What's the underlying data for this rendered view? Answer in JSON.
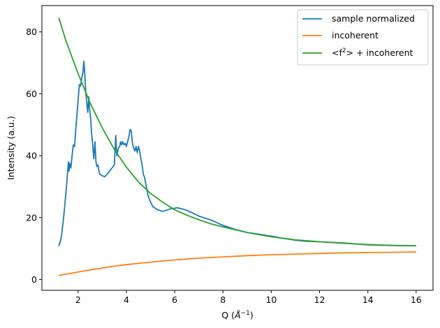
{
  "chart_data": {
    "type": "line",
    "xlabel": "Q (Å⁻¹)",
    "ylabel": "Intensity (a.u.)",
    "xlim": [
      0.5,
      16.7
    ],
    "ylim": [
      -3.5,
      88.5
    ],
    "xticks": [
      2,
      4,
      6,
      8,
      10,
      12,
      14,
      16
    ],
    "yticks": [
      0,
      20,
      40,
      60,
      80
    ],
    "grid": false,
    "legend_position": "top-right",
    "series": [
      {
        "name": "sample normalized",
        "color": "#1f77b4",
        "x": [
          1.2,
          1.3,
          1.4,
          1.5,
          1.6,
          1.62,
          1.66,
          1.7,
          1.75,
          1.8,
          1.85,
          1.9,
          1.95,
          2.0,
          2.05,
          2.1,
          2.15,
          2.2,
          2.24,
          2.28,
          2.32,
          2.36,
          2.4,
          2.44,
          2.48,
          2.52,
          2.56,
          2.6,
          2.65,
          2.7,
          2.74,
          2.78,
          2.82,
          2.86,
          2.9,
          3.0,
          3.1,
          3.2,
          3.3,
          3.4,
          3.5,
          3.56,
          3.6,
          3.64,
          3.68,
          3.72,
          3.76,
          3.8,
          3.85,
          3.9,
          3.95,
          4.0,
          4.05,
          4.1,
          4.15,
          4.2,
          4.25,
          4.3,
          4.35,
          4.4,
          4.45,
          4.5,
          4.55,
          4.6,
          4.65,
          4.7,
          4.75,
          4.8,
          4.85,
          4.9,
          5.0,
          5.1,
          5.2,
          5.3,
          5.5,
          5.7,
          5.9,
          6.0,
          6.1,
          6.2,
          6.4,
          6.6,
          7.0,
          7.5,
          8.0,
          8.5,
          9.0,
          9.5,
          10.0,
          10.5,
          11.0,
          11.5,
          12.0,
          12.5,
          13.0,
          13.5,
          14.0,
          14.5,
          15.0,
          15.5,
          16.0
        ],
        "y": [
          10.8,
          13.5,
          20.0,
          28.5,
          38.0,
          35.0,
          37.5,
          36.0,
          40.0,
          43.5,
          43.0,
          48.0,
          53.0,
          58.0,
          63.0,
          62.5,
          65.0,
          67.0,
          70.5,
          66.0,
          60.0,
          57.0,
          54.0,
          59.0,
          55.0,
          52.0,
          47.0,
          44.0,
          39.0,
          44.5,
          38.0,
          36.5,
          37.0,
          35.0,
          34.0,
          33.5,
          33.2,
          34.0,
          35.0,
          36.0,
          37.0,
          46.5,
          40.0,
          41.5,
          42.5,
          43.0,
          44.5,
          43.5,
          44.5,
          43.5,
          44.0,
          43.0,
          44.5,
          46.0,
          48.5,
          48.0,
          44.0,
          42.5,
          41.5,
          43.0,
          41.0,
          43.0,
          41.5,
          39.0,
          37.0,
          34.0,
          33.0,
          31.0,
          29.0,
          27.0,
          25.0,
          23.5,
          23.0,
          22.5,
          22.0,
          22.5,
          23.0,
          23.0,
          23.2,
          23.0,
          22.6,
          22.0,
          20.5,
          19.2,
          17.5,
          16.2,
          15.2,
          14.6,
          14.0,
          13.3,
          12.7,
          12.3,
          12.2,
          12.0,
          11.8,
          11.5,
          11.2,
          11.1,
          11.0,
          10.9,
          10.9
        ]
      },
      {
        "name": "incoherent",
        "color": "#ff7f0e",
        "x": [
          1.2,
          1.5,
          2.0,
          2.5,
          3.0,
          3.5,
          4.0,
          4.5,
          5.0,
          5.5,
          6.0,
          7.0,
          8.0,
          9.0,
          10.0,
          11.0,
          12.0,
          13.0,
          14.0,
          15.0,
          16.0
        ],
        "y": [
          1.3,
          1.7,
          2.4,
          3.1,
          3.7,
          4.3,
          4.8,
          5.2,
          5.6,
          6.0,
          6.3,
          6.9,
          7.3,
          7.7,
          8.0,
          8.2,
          8.4,
          8.6,
          8.7,
          8.8,
          8.9
        ]
      },
      {
        "name": "<f²> + incoherent",
        "color": "#2ca02c",
        "x": [
          1.2,
          1.5,
          2.0,
          2.5,
          3.0,
          3.5,
          4.0,
          4.5,
          5.0,
          5.5,
          6.0,
          6.5,
          7.0,
          7.5,
          8.0,
          9.0,
          10.0,
          11.0,
          12.0,
          13.0,
          14.0,
          15.0,
          16.0
        ],
        "y": [
          84.5,
          77.0,
          66.5,
          57.0,
          49.0,
          42.0,
          36.3,
          31.5,
          27.8,
          25.0,
          22.5,
          20.8,
          19.3,
          18.0,
          17.0,
          15.2,
          13.8,
          12.8,
          12.2,
          11.7,
          11.3,
          11.0,
          10.9
        ]
      }
    ]
  }
}
